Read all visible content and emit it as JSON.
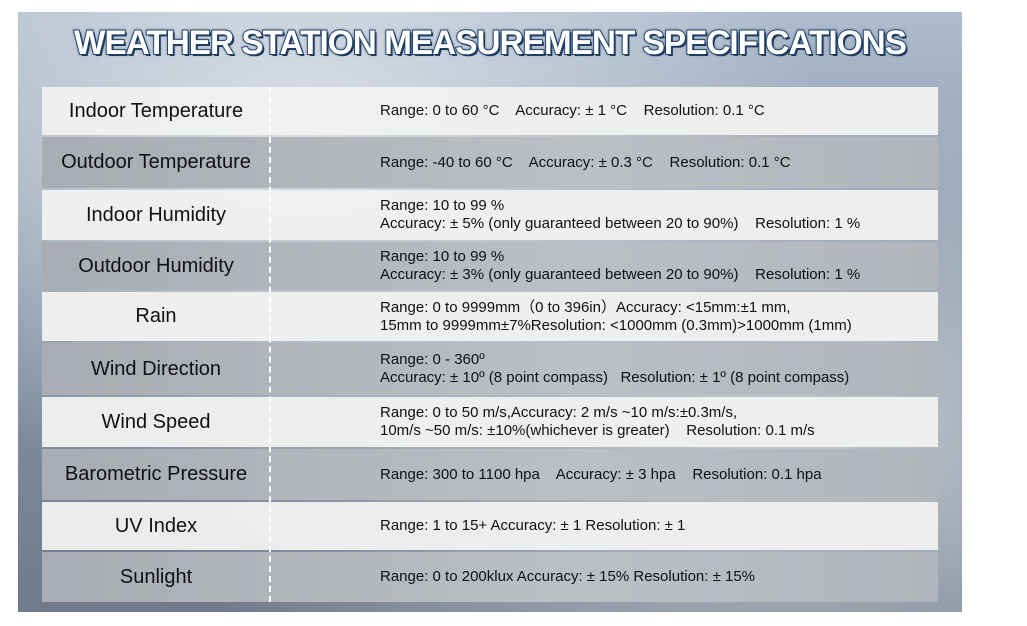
{
  "title": "WEATHER STATION MEASUREMENT SPECIFICATIONS",
  "rows": [
    {
      "label": "Indoor Temperature",
      "lines": [
        "Range: 0 to 60 °C    Accuracy: ± 1 °C    Resolution: 0.1 °C"
      ]
    },
    {
      "label": "Outdoor Temperature",
      "lines": [
        "Range: -40 to 60 °C    Accuracy: ± 0.3 °C    Resolution: 0.1 °C"
      ]
    },
    {
      "label": "Indoor Humidity",
      "lines": [
        "Range: 10 to 99 %",
        "Accuracy: ± 5% (only guaranteed between 20 to 90%)    Resolution: 1 %"
      ]
    },
    {
      "label": "Outdoor Humidity",
      "lines": [
        "Range: 10 to 99 %",
        "Accuracy: ± 3% (only guaranteed between 20 to 90%)    Resolution: 1 %"
      ]
    },
    {
      "label": "Rain",
      "lines": [
        "Range: 0 to 9999mm（0 to 396in）Accuracy: <15mm:±1 mm,",
        "15mm to 9999mm±7%Resolution: <1000mm (0.3mm)>1000mm (1mm)"
      ]
    },
    {
      "label": "Wind Direction",
      "lines": [
        "Range: 0 - 360º",
        "Accuracy: ± 10º (8 point compass)   Resolution: ± 1º (8 point compass)"
      ]
    },
    {
      "label": "Wind Speed",
      "lines": [
        "Range: 0 to 50 m/s,Accuracy: 2 m/s ~10 m/s:±0.3m/s,",
        "10m/s ~50 m/s: ±10%(whichever is greater)    Resolution: 0.1 m/s"
      ]
    },
    {
      "label": "Barometric Pressure",
      "lines": [
        "Range: 300 to 1100 hpa    Accuracy: ± 3 hpa    Resolution: 0.1 hpa"
      ]
    },
    {
      "label": "UV Index",
      "lines": [
        "Range: 1 to 15+ Accuracy: ± 1 Resolution: ± 1"
      ]
    },
    {
      "label": "Sunlight",
      "lines": [
        "Range: 0 to 200klux Accuracy: ± 15% Resolution: ± 15%"
      ]
    }
  ]
}
